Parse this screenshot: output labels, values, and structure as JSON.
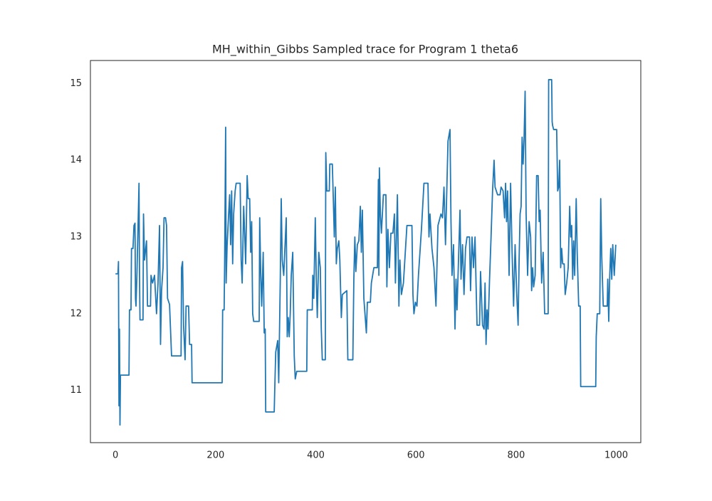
{
  "chart_data": {
    "type": "line",
    "title": "MH_within_Gibbs Sampled trace for Program 1 theta6",
    "xlim": [
      -50,
      1049
    ],
    "xticks": [
      0,
      200,
      400,
      600,
      800,
      1000
    ],
    "ylim": [
      10.32,
      15.3
    ],
    "yticks": [
      11,
      12,
      13,
      14,
      15
    ],
    "grid": false,
    "series": [
      {
        "color": "#1f77b4",
        "x": [
          0,
          5,
          6,
          7,
          8,
          9,
          10,
          27,
          28,
          31,
          32,
          35,
          37,
          39,
          40,
          41,
          43,
          46,
          47,
          48,
          49,
          55,
          56,
          58,
          62,
          64,
          70,
          71,
          74,
          78,
          82,
          85,
          88,
          90,
          92,
          95,
          97,
          100,
          102,
          104,
          108,
          112,
          131,
          132,
          134,
          136,
          139,
          141,
          146,
          148,
          152,
          153,
          213,
          214,
          217,
          218,
          220,
          221,
          223,
          226,
          228,
          230,
          232,
          234,
          236,
          239,
          241,
          249,
          251,
          253,
          256,
          258,
          260,
          263,
          265,
          268,
          270,
          272,
          274,
          276,
          287,
          288,
          290,
          292,
          295,
          297,
          299,
          300,
          317,
          318,
          320,
          324,
          326,
          329,
          331,
          333,
          336,
          341,
          343,
          345,
          347,
          349,
          351,
          354,
          357,
          359,
          362,
          382,
          383,
          393,
          394,
          396,
          399,
          401,
          403,
          406,
          409,
          411,
          413,
          419,
          420,
          422,
          427,
          428,
          433,
          435,
          437,
          439,
          441,
          443,
          446,
          448,
          451,
          453,
          462,
          464,
          474,
          476,
          478,
          480,
          483,
          486,
          489,
          491,
          493,
          496,
          501,
          503,
          509,
          511,
          516,
          523,
          525,
          526,
          527,
          529,
          531,
          535,
          540,
          542,
          544,
          547,
          550,
          554,
          557,
          559,
          563,
          566,
          568,
          571,
          575,
          582,
          592,
          594,
          596,
          599,
          602,
          605,
          608,
          611,
          616,
          624,
          626,
          628,
          632,
          636,
          640,
          644,
          650,
          653,
          656,
          659,
          664,
          668,
          670,
          672,
          675,
          678,
          680,
          682,
          688,
          690,
          693,
          696,
          699,
          702,
          707,
          709,
          712,
          715,
          718,
          720,
          722,
          727,
          729,
          733,
          736,
          738,
          740,
          742,
          744,
          747,
          750,
          753,
          756,
          758,
          763,
          768,
          770,
          774,
          777,
          779,
          781,
          783,
          786,
          789,
          792,
          795,
          798,
          801,
          804,
          806,
          808,
          810,
          812,
          814,
          816,
          818,
          820,
          823,
          826,
          829,
          831,
          833,
          835,
          838,
          841,
          844,
          846,
          848,
          851,
          854,
          857,
          864,
          865,
          871,
          872,
          873,
          875,
          881,
          883,
          885,
          887,
          889,
          891,
          893,
          896,
          898,
          901,
          904,
          907,
          909,
          911,
          913,
          915,
          917,
          920,
          922,
          925,
          928,
          929,
          959,
          960,
          962,
          967,
          969,
          971,
          974,
          982,
          983,
          985,
          987,
          989,
          991,
          993,
          996,
          999
        ],
        "values": [
          12.52,
          12.52,
          12.68,
          10.8,
          11.8,
          10.55,
          11.2,
          11.2,
          12.05,
          12.05,
          12.85,
          12.85,
          13.15,
          13.18,
          12.2,
          12.1,
          12.55,
          13.4,
          13.7,
          12.5,
          11.92,
          11.92,
          13.3,
          12.7,
          12.95,
          12.1,
          12.1,
          12.5,
          12.4,
          12.5,
          12.0,
          12.4,
          13.15,
          11.6,
          12.3,
          12.6,
          13.25,
          13.25,
          13.15,
          12.2,
          12.12,
          11.45,
          11.45,
          12.6,
          12.68,
          11.85,
          11.4,
          12.1,
          12.1,
          11.6,
          11.6,
          11.1,
          11.1,
          12.05,
          12.05,
          12.65,
          14.43,
          12.4,
          12.9,
          13.3,
          13.55,
          12.9,
          13.6,
          12.65,
          13.3,
          13.6,
          13.7,
          13.7,
          12.7,
          12.4,
          13.4,
          13.05,
          12.65,
          13.8,
          13.5,
          13.5,
          12.8,
          13.2,
          12.0,
          11.9,
          11.9,
          13.25,
          12.55,
          12.1,
          12.8,
          11.75,
          11.8,
          10.72,
          10.72,
          11.0,
          11.5,
          11.65,
          11.1,
          12.4,
          13.5,
          12.7,
          12.5,
          13.25,
          11.7,
          11.95,
          11.7,
          12.0,
          12.5,
          12.8,
          11.45,
          11.15,
          11.25,
          11.25,
          12.05,
          12.05,
          12.5,
          12.2,
          13.25,
          12.45,
          11.95,
          12.8,
          12.6,
          11.8,
          11.4,
          11.4,
          14.1,
          13.6,
          13.6,
          13.95,
          13.95,
          13.5,
          13.0,
          13.65,
          12.65,
          12.85,
          12.95,
          12.7,
          11.95,
          12.25,
          12.3,
          11.4,
          11.4,
          12.45,
          13.0,
          12.55,
          12.9,
          12.95,
          13.4,
          12.8,
          13.35,
          12.2,
          11.75,
          12.15,
          12.15,
          12.4,
          12.6,
          12.6,
          13.75,
          12.5,
          13.9,
          13.3,
          13.05,
          13.55,
          13.55,
          12.35,
          13.1,
          12.6,
          13.05,
          13.05,
          13.3,
          12.4,
          13.55,
          12.1,
          12.7,
          12.25,
          12.4,
          13.15,
          13.15,
          12.25,
          12.0,
          12.15,
          12.1,
          12.5,
          12.8,
          13.1,
          13.7,
          13.7,
          13.0,
          13.3,
          12.85,
          12.6,
          12.1,
          13.15,
          13.3,
          13.25,
          13.65,
          12.9,
          14.25,
          14.4,
          13.2,
          12.5,
          12.9,
          11.8,
          12.45,
          12.05,
          13.35,
          12.45,
          12.9,
          12.25,
          12.85,
          13.0,
          13.0,
          12.3,
          13.0,
          12.6,
          13.0,
          12.4,
          11.85,
          11.85,
          12.55,
          11.85,
          11.8,
          12.4,
          11.6,
          12.05,
          11.8,
          12.45,
          13.0,
          13.6,
          14.0,
          13.65,
          13.55,
          13.55,
          13.65,
          13.6,
          13.25,
          13.7,
          13.2,
          13.6,
          12.5,
          13.7,
          12.8,
          12.1,
          12.9,
          12.3,
          11.85,
          12.7,
          13.3,
          13.4,
          14.3,
          13.95,
          14.3,
          14.9,
          13.3,
          12.5,
          13.2,
          13.0,
          12.3,
          12.6,
          12.35,
          12.5,
          13.8,
          13.8,
          13.2,
          13.35,
          12.4,
          12.8,
          12.0,
          12.0,
          15.05,
          15.05,
          14.5,
          14.45,
          14.4,
          14.4,
          13.6,
          13.65,
          14.0,
          12.6,
          12.85,
          12.65,
          12.65,
          12.25,
          12.4,
          12.6,
          13.4,
          13.0,
          13.15,
          12.45,
          12.95,
          12.5,
          13.5,
          12.8,
          12.1,
          12.1,
          11.05,
          11.05,
          11.7,
          12.0,
          12.0,
          13.5,
          12.75,
          12.1,
          12.1,
          12.45,
          11.9,
          12.5,
          12.85,
          12.45,
          12.9,
          12.5,
          12.9
        ]
      }
    ]
  }
}
